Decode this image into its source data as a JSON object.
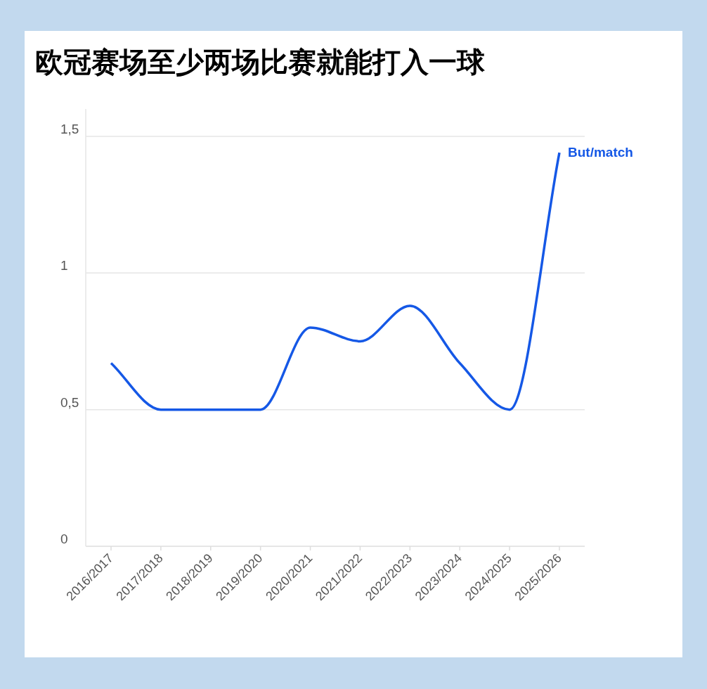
{
  "chart_data": {
    "type": "line",
    "title": "欧冠赛场至少两场比赛就能打入一球",
    "categories": [
      "2016/2017",
      "2017/2018",
      "2018/2019",
      "2019/2020",
      "2020/2021",
      "2021/2022",
      "2022/2023",
      "2023/2024",
      "2024/2025",
      "2025/2026"
    ],
    "series": [
      {
        "name": "But/match",
        "color": "#1558e6",
        "values": [
          0.67,
          0.5,
          0.5,
          0.5,
          0.8,
          0.75,
          0.88,
          0.67,
          0.5,
          1.44
        ]
      }
    ],
    "ylim": [
      0,
      1.6
    ],
    "yticks": [
      0,
      {
        "value": 0.5,
        "label": "0,5"
      },
      1,
      {
        "value": 1.5,
        "label": "1,5"
      }
    ],
    "grid": "y",
    "legend": false,
    "marker": "none",
    "line_style": "solid"
  }
}
